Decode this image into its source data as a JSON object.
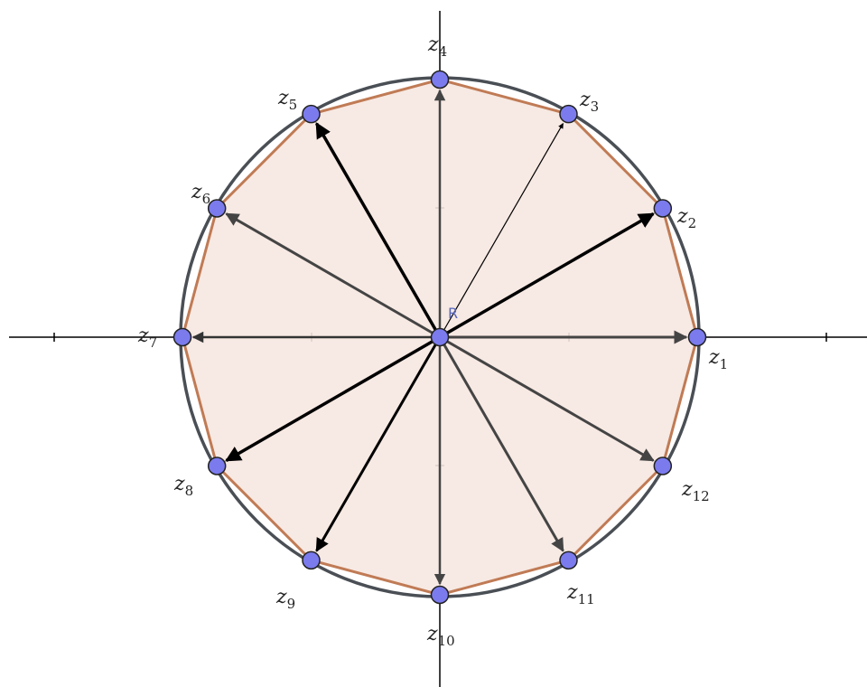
{
  "center": {
    "label": "R"
  },
  "points": [
    {
      "label": "z",
      "subscript": "1"
    },
    {
      "label": "z",
      "subscript": "2"
    },
    {
      "label": "z",
      "subscript": "3"
    },
    {
      "label": "z",
      "subscript": "4"
    },
    {
      "label": "z",
      "subscript": "5"
    },
    {
      "label": "z",
      "subscript": "6"
    },
    {
      "label": "z",
      "subscript": "7"
    },
    {
      "label": "z",
      "subscript": "8"
    },
    {
      "label": "z",
      "subscript": "9"
    },
    {
      "label": "z",
      "subscript": "10"
    },
    {
      "label": "z",
      "subscript": "11"
    },
    {
      "label": "z",
      "subscript": "12"
    }
  ]
}
